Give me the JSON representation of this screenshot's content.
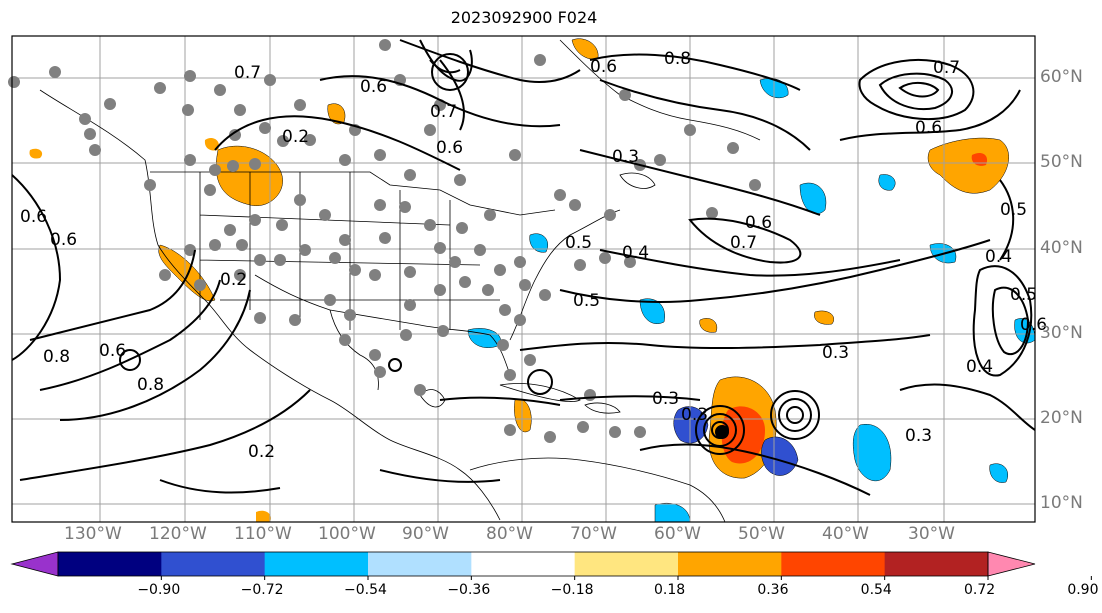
{
  "title": "2023092900 F024",
  "lon_labels": [
    "130°W",
    "120°W",
    "110°W",
    "100°W",
    "90°W",
    "80°W",
    "70°W",
    "60°W",
    "50°W",
    "40°W",
    "30°W"
  ],
  "lat_labels": [
    "60°N",
    "50°N",
    "40°N",
    "30°N",
    "20°N",
    "10°N"
  ],
  "colorbar": {
    "ticks": [
      "−0.90",
      "−0.72",
      "−0.54",
      "−0.36",
      "−0.18",
      "0.18",
      "0.36",
      "0.54",
      "0.72",
      "0.90"
    ],
    "colors": [
      "#9932cc",
      "#000080",
      "#3050d0",
      "#00bfff",
      "#b0e0ff",
      "#ffffff",
      "#ffe680",
      "#ffa500",
      "#ff4500",
      "#b22222",
      "#ff88b0"
    ]
  },
  "contour_labels": [
    "0.2",
    "0.6",
    "0.8",
    "0.7",
    "0.6",
    "0.3",
    "0.8",
    "0.6",
    "0.7",
    "0.6",
    "0.7",
    "0.6",
    "0.4",
    "0.5",
    "0.4",
    "0.5",
    "0.6",
    "0.8",
    "0.5",
    "0.6",
    "0.2",
    "0.3",
    "0.3",
    "0.4",
    "0.3",
    "0.3",
    "0.2",
    "0.7",
    "0.6",
    "0.5",
    "0.6"
  ],
  "colors": {
    "grid": "#a0a0a0",
    "frame": "#000000",
    "label": "#7a7a7a",
    "dot": "#808080"
  }
}
